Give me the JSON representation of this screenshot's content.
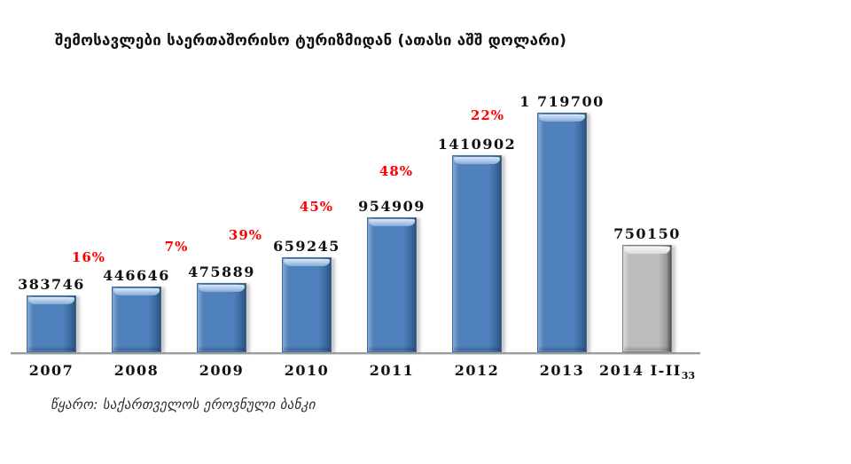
{
  "colors": {
    "blue": {
      "fill": "#4f81bd",
      "light": "#86aad6",
      "lighter": "#dce9f6",
      "dark": "#3a699c",
      "darker": "#2b5178",
      "border": "#3f6997"
    },
    "gray": {
      "fill": "#bdbdbd",
      "light": "#dcdcdc",
      "lighter": "#f7f7f7",
      "dark": "#9a9a9a",
      "darker": "#4f4f4f",
      "border": "#7f7f7f"
    },
    "growth_label": "#ff0000",
    "axis": "#9c9c9c",
    "text": "#111111"
  },
  "chart_data": {
    "type": "bar",
    "title": "შემოსავლები საერთაშორისო ტურიზმიდან (ათასი აშშ დოლარი)",
    "categories": [
      "2007",
      "2008",
      "2009",
      "2010",
      "2011",
      "2012",
      "2013",
      "2014 I-II"
    ],
    "values": [
      383746,
      446646,
      475889,
      659245,
      954909,
      1410902,
      1719700,
      750150
    ],
    "value_labels": [
      "383746",
      "446646",
      "475889",
      "659245",
      "954909",
      "1410902",
      "1 719700",
      "750150"
    ],
    "growth_labels": [
      null,
      "16%",
      "7%",
      "39%",
      "45%",
      "48%",
      "22%",
      null
    ],
    "bar_color": [
      "blue",
      "blue",
      "blue",
      "blue",
      "blue",
      "blue",
      "blue",
      "gray"
    ],
    "footnote_marker": "33",
    "footnote_category_index": 7,
    "xlabel": "",
    "ylabel": "",
    "ylim": [
      0,
      1800000
    ],
    "grid": false,
    "legend": null,
    "source": "წყარო: საქართველოს ეროვნული ბანკი"
  }
}
